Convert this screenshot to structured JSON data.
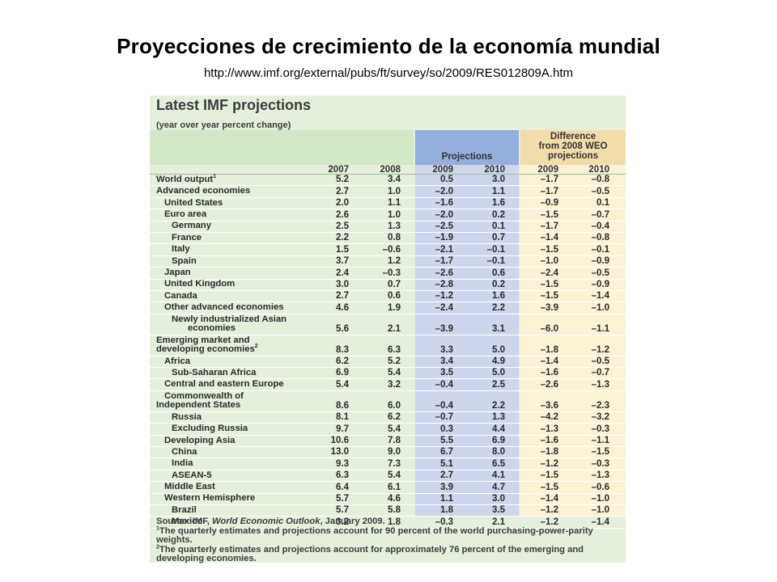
{
  "slide": {
    "title": "Proyecciones de crecimiento de la economía mundial",
    "url": "http://www.imf.org/external/pubs/ft/survey/so/2009/RES012809A.htm"
  },
  "panel": {
    "title": "Latest IMF projections",
    "subtitle": "(year over year percent change)",
    "projections_header": "Projections",
    "difference_header": [
      "Difference",
      "from 2008 WEO",
      "projections"
    ],
    "years": [
      "2007",
      "2008",
      "2009",
      "2010",
      "2009",
      "2010"
    ]
  },
  "rows": [
    {
      "label": "World output",
      "sup": "1",
      "indent": 0,
      "bold": true,
      "lines": 1,
      "values": [
        "5.2",
        "3.4",
        "0.5",
        "3.0",
        "–1.7",
        "–0.8"
      ]
    },
    {
      "label": "Advanced economies",
      "indent": 0,
      "lines": 1,
      "values": [
        "2.7",
        "1.0",
        "–2.0",
        "1.1",
        "–1.7",
        "–0.5"
      ]
    },
    {
      "label": "United States",
      "indent": 1,
      "lines": 1,
      "values": [
        "2.0",
        "1.1",
        "–1.6",
        "1.6",
        "–0.9",
        "0.1"
      ]
    },
    {
      "label": "Euro area",
      "indent": 1,
      "lines": 1,
      "values": [
        "2.6",
        "1.0",
        "–2.0",
        "0.2",
        "–1.5",
        "–0.7"
      ]
    },
    {
      "label": "Germany",
      "indent": 2,
      "lines": 1,
      "values": [
        "2.5",
        "1.3",
        "–2.5",
        "0.1",
        "–1.7",
        "–0.4"
      ]
    },
    {
      "label": "France",
      "indent": 2,
      "lines": 1,
      "values": [
        "2.2",
        "0.8",
        "–1.9",
        "0.7",
        "–1.4",
        "–0.8"
      ]
    },
    {
      "label": "Italy",
      "indent": 2,
      "lines": 1,
      "values": [
        "1.5",
        "–0.6",
        "–2.1",
        "–0.1",
        "–1.5",
        "–0.1"
      ]
    },
    {
      "label": "Spain",
      "indent": 2,
      "lines": 1,
      "values": [
        "3.7",
        "1.2",
        "–1.7",
        "–0.1",
        "–1.0",
        "–0.9"
      ]
    },
    {
      "label": "Japan",
      "indent": 1,
      "lines": 1,
      "values": [
        "2.4",
        "–0.3",
        "–2.6",
        "0.6",
        "–2.4",
        "–0.5"
      ]
    },
    {
      "label": "United Kingdom",
      "indent": 1,
      "lines": 1,
      "values": [
        "3.0",
        "0.7",
        "–2.8",
        "0.2",
        "–1.5",
        "–0.9"
      ]
    },
    {
      "label": "Canada",
      "indent": 1,
      "lines": 1,
      "values": [
        "2.7",
        "0.6",
        "–1.2",
        "1.6",
        "–1.5",
        "–1.4"
      ]
    },
    {
      "label": "Other advanced economies",
      "indent": 1,
      "lines": 1,
      "values": [
        "4.6",
        "1.9",
        "–2.4",
        "2.2",
        "–3.9",
        "–1.0"
      ]
    },
    {
      "label": "Newly industrialized Asian",
      "label2": "economies",
      "indent": 2,
      "lines": 2,
      "values": [
        "5.6",
        "2.1",
        "–3.9",
        "3.1",
        "–6.0",
        "–1.1"
      ]
    },
    {
      "label": "Emerging market and",
      "label2": "developing economies",
      "sup": "2",
      "indent": 0,
      "lines": 2,
      "values": [
        "8.3",
        "6.3",
        "3.3",
        "5.0",
        "–1.8",
        "–1.2"
      ]
    },
    {
      "label": "Africa",
      "indent": 1,
      "lines": 1,
      "values": [
        "6.2",
        "5.2",
        "3.4",
        "4.9",
        "–1.4",
        "–0.5"
      ]
    },
    {
      "label": "Sub-Saharan Africa",
      "indent": 2,
      "lines": 1,
      "values": [
        "6.9",
        "5.4",
        "3.5",
        "5.0",
        "–1.6",
        "–0.7"
      ]
    },
    {
      "label": "Central and eastern Europe",
      "indent": 1,
      "lines": 1,
      "values": [
        "5.4",
        "3.2",
        "–0.4",
        "2.5",
        "–2.6",
        "–1.3"
      ]
    },
    {
      "label": "Commonwealth of",
      "label2": "Independent States",
      "indent": 1,
      "lines": 2,
      "values": [
        "8.6",
        "6.0",
        "–0.4",
        "2.2",
        "–3.6",
        "–2.3"
      ]
    },
    {
      "label": "Russia",
      "indent": 2,
      "lines": 1,
      "values": [
        "8.1",
        "6.2",
        "–0.7",
        "1.3",
        "–4.2",
        "–3.2"
      ]
    },
    {
      "label": "Excluding Russia",
      "indent": 2,
      "lines": 1,
      "values": [
        "9.7",
        "5.4",
        "0.3",
        "4.4",
        "–1.3",
        "–0.3"
      ]
    },
    {
      "label": "Developing Asia",
      "indent": 1,
      "lines": 1,
      "values": [
        "10.6",
        "7.8",
        "5.5",
        "6.9",
        "–1.6",
        "–1.1"
      ]
    },
    {
      "label": "China",
      "indent": 2,
      "lines": 1,
      "values": [
        "13.0",
        "9.0",
        "6.7",
        "8.0",
        "–1.8",
        "–1.5"
      ]
    },
    {
      "label": "India",
      "indent": 2,
      "lines": 1,
      "values": [
        "9.3",
        "7.3",
        "5.1",
        "6.5",
        "–1.2",
        "–0.3"
      ]
    },
    {
      "label": "ASEAN-5",
      "indent": 2,
      "lines": 1,
      "values": [
        "6.3",
        "5.4",
        "2.7",
        "4.1",
        "–1.5",
        "–1.3"
      ]
    },
    {
      "label": "Middle East",
      "indent": 1,
      "lines": 1,
      "values": [
        "6.4",
        "6.1",
        "3.9",
        "4.7",
        "–1.5",
        "–0.6"
      ]
    },
    {
      "label": "Western Hemisphere",
      "indent": 1,
      "lines": 1,
      "values": [
        "5.7",
        "4.6",
        "1.1",
        "3.0",
        "–1.4",
        "–1.0"
      ]
    },
    {
      "label": "Brazil",
      "indent": 2,
      "lines": 1,
      "values": [
        "5.7",
        "5.8",
        "1.8",
        "3.5",
        "–1.2",
        "–1.0"
      ]
    },
    {
      "label": "Mexico",
      "indent": 2,
      "lines": 1,
      "values": [
        "3.2",
        "1.8",
        "–0.3",
        "2.1",
        "–1.2",
        "–1.4"
      ]
    }
  ],
  "notes": {
    "source_prefix": "Source: IMF, ",
    "source_title": "World Economic Outlook",
    "source_suffix": ", January 2009.",
    "note1_mark": "1",
    "note1": "The quarterly estimates and projections account for 90 percent of the world purchasing-power-parity weights.",
    "note2_mark": "2",
    "note2": "The quarterly estimates and projections account for approximately 76 percent of the emerging and developing economies."
  }
}
